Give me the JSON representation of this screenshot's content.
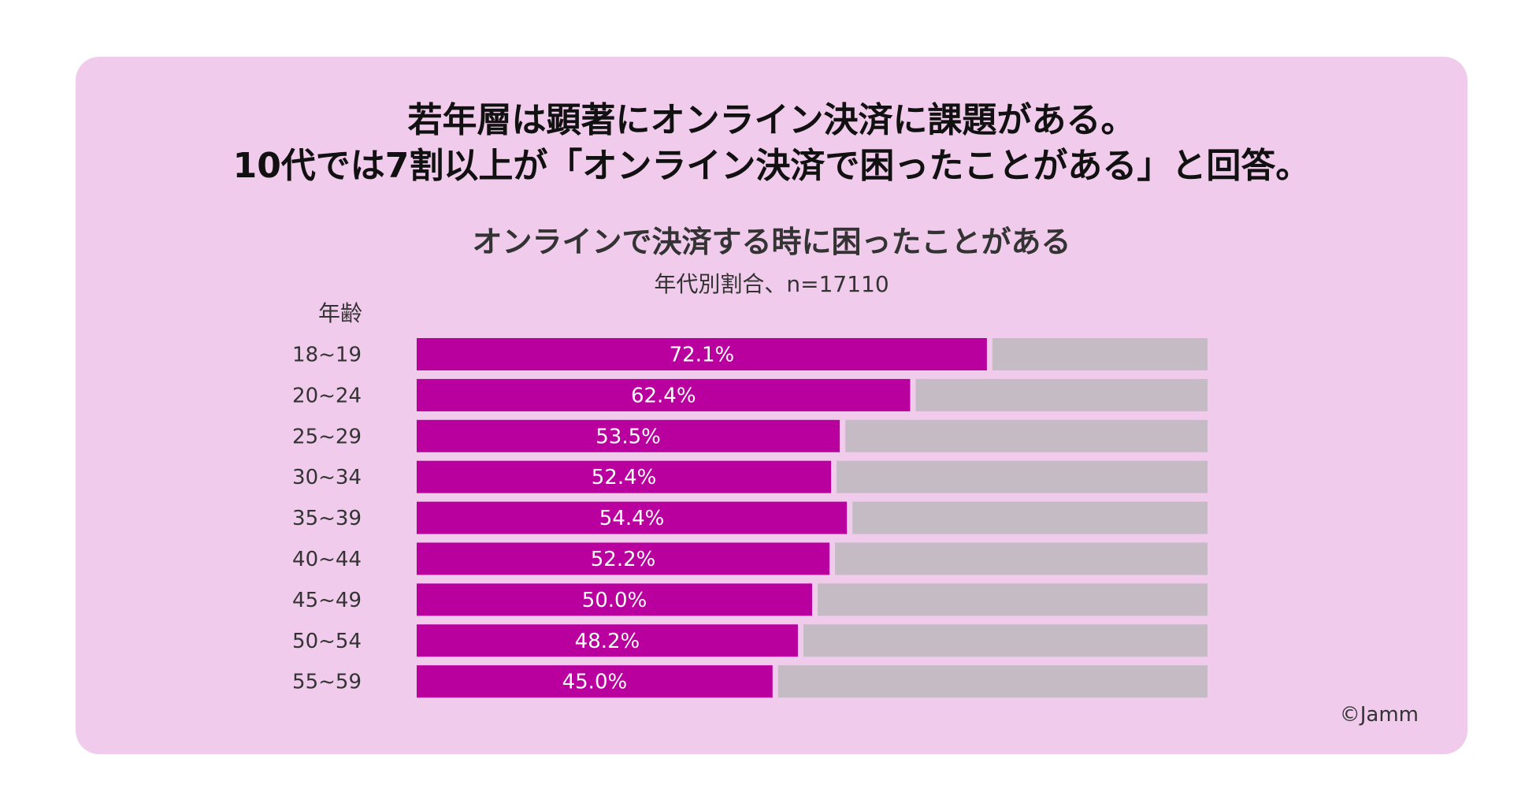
{
  "headline": {
    "line1": "若年層は顕著にオンライン決済に課題がある。",
    "line2": "10代では7割以上が「オンライン決済で困ったことがある」と回答。"
  },
  "footer": {
    "copyright": "©Jamm"
  },
  "colors": {
    "background_card": "#f0cbeb",
    "bar_fill": "#b9009f",
    "bar_remainder": "#c5bbc4",
    "value_label": "#ffffff",
    "text": "#333333"
  },
  "chart_data": {
    "type": "bar",
    "orientation": "horizontal",
    "stacked_percent": true,
    "title": "オンラインで決済する時に困ったことがある",
    "subtitle": "年代別割合、n=17110",
    "ylabel": "年齢",
    "xlim": [
      0,
      100
    ],
    "categories": [
      "18~19",
      "20~24",
      "25~29",
      "30~34",
      "35~39",
      "40~44",
      "45~49",
      "50~54",
      "55~59"
    ],
    "values": [
      72.1,
      62.4,
      53.5,
      52.4,
      54.4,
      52.2,
      50.0,
      48.2,
      45.0
    ],
    "value_labels": [
      "72.1%",
      "62.4%",
      "53.5%",
      "52.4%",
      "54.4%",
      "52.2%",
      "50.0%",
      "48.2%",
      "45.0%"
    ]
  }
}
